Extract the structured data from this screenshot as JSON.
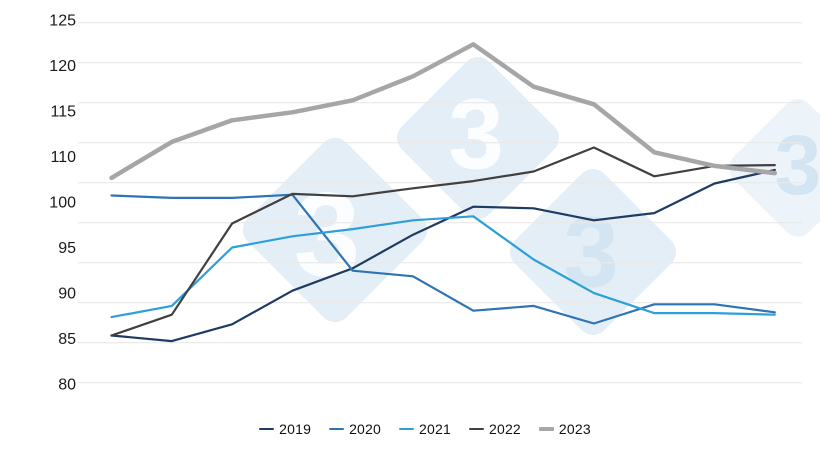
{
  "chart_data": {
    "type": "line",
    "title": "",
    "x_axis": {
      "tick_labels_visible": false,
      "points_per_series": 12
    },
    "y_axis": {
      "range": [
        80,
        125
      ],
      "gridline_step": 5,
      "tick_labels": [
        "125",
        "120",
        "115",
        "110",
        "100",
        "95",
        "90",
        "85",
        "80"
      ],
      "tick_label_color": "#1a1a1a",
      "gridline_color": "#e8e8e8"
    },
    "series": [
      {
        "name": "2019",
        "color": "#1f3b63",
        "stroke_width": 2.2,
        "values": [
          85.9,
          85.2,
          87.3,
          91.5,
          94.3,
          98.5,
          102.0,
          101.8,
          100.3,
          101.2,
          104.9,
          106.6
        ]
      },
      {
        "name": "2020",
        "color": "#2e74b5",
        "stroke_width": 2.2,
        "values": [
          103.4,
          103.1,
          103.1,
          103.5,
          94.0,
          93.3,
          89.0,
          89.6,
          87.4,
          89.8,
          89.8,
          88.8
        ]
      },
      {
        "name": "2021",
        "color": "#2e9fd8",
        "stroke_width": 2.2,
        "values": [
          88.2,
          89.6,
          96.9,
          98.3,
          99.2,
          100.3,
          100.8,
          95.4,
          91.2,
          88.7,
          88.7,
          88.5
        ]
      },
      {
        "name": "2022",
        "color": "#404040",
        "stroke_width": 2.2,
        "values": [
          85.9,
          88.5,
          99.9,
          103.6,
          103.3,
          104.3,
          105.2,
          106.4,
          109.4,
          105.8,
          107.1,
          107.2
        ]
      },
      {
        "name": "2023",
        "color": "#a6a6a6",
        "stroke_width": 4.5,
        "values": [
          105.6,
          110.1,
          112.8,
          113.8,
          115.3,
          118.3,
          122.3,
          117.0,
          114.8,
          108.8,
          107.1,
          106.2
        ]
      }
    ],
    "legend": {
      "position": "bottom",
      "entries": [
        "2019",
        "2020",
        "2021",
        "2022",
        "2023"
      ]
    },
    "watermark": {
      "glyph": "3",
      "diamond_fill": "#e4eef7",
      "diamond_fill_light": "#ecf4fa",
      "glyph_white": "#fbfdfe",
      "glyph_blue": "#d3e5f3"
    }
  }
}
